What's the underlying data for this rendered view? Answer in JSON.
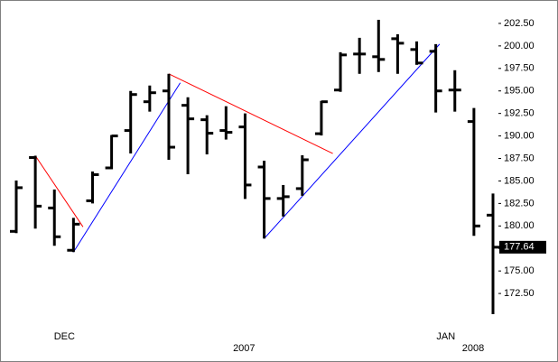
{
  "chart_data": {
    "type": "ohlc",
    "categories": [
      null,
      null,
      null,
      "DEC",
      null,
      null,
      null,
      null,
      null,
      null,
      null,
      null,
      null,
      null,
      null,
      null,
      null,
      null,
      null,
      null,
      null,
      null,
      null,
      "JAN",
      null,
      null
    ],
    "years": [
      null,
      null,
      null,
      null,
      null,
      null,
      null,
      null,
      null,
      null,
      null,
      "2007",
      null,
      null,
      null,
      null,
      null,
      null,
      null,
      null,
      null,
      null,
      null,
      null,
      null,
      "2008"
    ],
    "open": [
      179.4,
      187.6,
      182.0,
      177.3,
      182.8,
      186.45,
      190.6,
      193.8,
      195.0,
      193.4,
      191.8,
      190.6,
      191.0,
      186.55,
      183.05,
      184.15,
      190.25,
      195.1,
      199.1,
      198.8,
      200.8,
      199.6,
      199.4,
      195.1,
      191.6,
      181.2
    ],
    "high": [
      185.05,
      187.8,
      184.05,
      180.9,
      186.05,
      190.1,
      195.0,
      195.6,
      196.9,
      194.3,
      192.3,
      193.3,
      192.5,
      187.25,
      184.55,
      187.85,
      193.9,
      199.3,
      200.9,
      202.9,
      201.3,
      200.5,
      200.2,
      197.3,
      193.1,
      183.6
    ],
    "low": [
      179.2,
      179.7,
      177.8,
      177.1,
      182.5,
      186.3,
      188.05,
      192.7,
      187.35,
      185.75,
      187.95,
      189.6,
      183.0,
      178.6,
      181.05,
      183.35,
      190.05,
      194.9,
      196.9,
      197.1,
      196.9,
      197.9,
      192.6,
      192.7,
      178.9,
      170.2
    ],
    "close": [
      184.25,
      182.2,
      178.8,
      180.2,
      185.7,
      190.0,
      194.6,
      194.8,
      188.75,
      191.9,
      190.3,
      190.4,
      184.55,
      183.05,
      183.25,
      187.35,
      193.8,
      199.0,
      199.1,
      198.5,
      200.3,
      198.1,
      195.0,
      195.1,
      180.0,
      177.64
    ],
    "color": "#000000",
    "last_value": {
      "value": 177.64,
      "label": "177.64"
    },
    "trendlines": [
      {
        "color": "#ff0000",
        "x": [
          1,
          3.5
        ],
        "y": [
          187.8,
          179.9
        ]
      },
      {
        "color": "#0000ff",
        "x": [
          3,
          8.6
        ],
        "y": [
          177.1,
          195.9
        ]
      },
      {
        "color": "#ff0000",
        "x": [
          8,
          16.6
        ],
        "y": [
          196.9,
          188.05
        ]
      },
      {
        "color": "#0000ff",
        "x": [
          13,
          22.2
        ],
        "y": [
          178.6,
          200.2
        ]
      }
    ],
    "ylim": [
      169.0,
      204.9
    ],
    "yticks": [
      {
        "value": 172.5,
        "label": "172.50"
      },
      {
        "value": 175,
        "label": "175.00"
      },
      {
        "value": 177.5,
        "label": "177.50"
      },
      {
        "value": 180,
        "label": "180.00"
      },
      {
        "value": 182.5,
        "label": "182.50"
      },
      {
        "value": 185,
        "label": "185.00"
      },
      {
        "value": 187.5,
        "label": "187.50"
      },
      {
        "value": 190,
        "label": "190.00"
      },
      {
        "value": 192.5,
        "label": "192.50"
      },
      {
        "value": 195,
        "label": "195.00"
      },
      {
        "value": 197.5,
        "label": "197.50"
      },
      {
        "value": 200,
        "label": "200.00"
      },
      {
        "value": 202.5,
        "label": "202.50"
      }
    ]
  }
}
